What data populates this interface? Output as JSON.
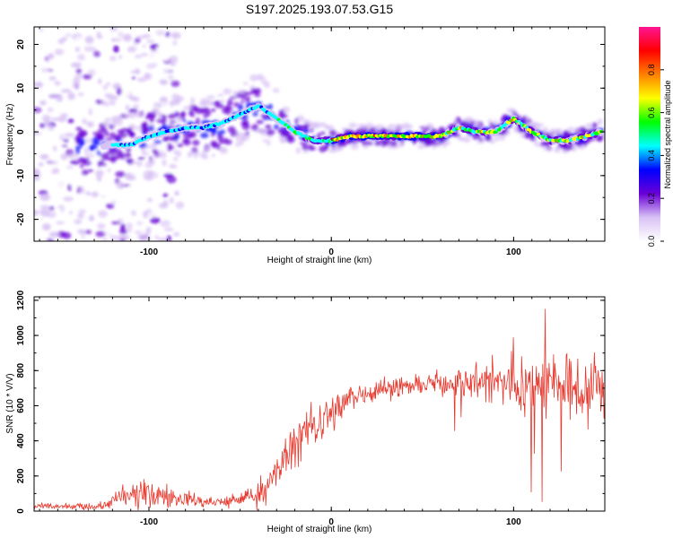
{
  "title": "S197.2025.193.07.53.G15",
  "chart_data": [
    {
      "type": "heatmap",
      "xlabel": "Height of straight line (km)",
      "ylabel": "Frequency (Hz)",
      "xlim": [
        -163,
        150
      ],
      "ylim": [
        -25,
        24
      ],
      "xticks": [
        -100,
        0,
        100
      ],
      "yticks": [
        -20,
        -10,
        0,
        10,
        20
      ],
      "colorbar": {
        "label": "Normalized spectral amplitude",
        "range": [
          0,
          1
        ],
        "ticks": [
          "0.0",
          "0.2",
          "0.4",
          "0.6",
          "0.8"
        ],
        "colors": [
          "#ffffff",
          "#d9c2f5",
          "#6a00d6",
          "#0000ff",
          "#00ffff",
          "#00ff00",
          "#ffff00",
          "#ff7f00",
          "#ff0000",
          "#ff1493"
        ]
      },
      "ridge": {
        "x": [
          -130,
          -120,
          -110,
          -100,
          -90,
          -80,
          -70,
          -60,
          -50,
          -40,
          -30,
          -20,
          -10,
          0,
          10,
          20,
          30,
          40,
          50,
          60,
          70,
          80,
          90,
          100,
          110,
          120,
          130,
          140,
          148
        ],
        "y": [
          -4,
          -3,
          -3,
          -1,
          0,
          1,
          1,
          2,
          4,
          6,
          3,
          0,
          -2,
          -2,
          -1,
          -1,
          -1,
          -1,
          -1,
          -1,
          1,
          0,
          0,
          3,
          0,
          -2,
          -2,
          -1,
          0
        ]
      }
    },
    {
      "type": "line",
      "xlabel": "Height of straight line (km)",
      "ylabel": "SNR (10 * V/V)",
      "xlim": [
        -163,
        150
      ],
      "ylim": [
        0,
        1220
      ],
      "xticks": [
        -100,
        0,
        100
      ],
      "yticks": [
        0,
        200,
        400,
        600,
        800,
        1000,
        1200
      ],
      "color": "#e8392e",
      "envelope": {
        "x": [
          -163,
          -140,
          -125,
          -120,
          -110,
          -100,
          -90,
          -80,
          -70,
          -60,
          -50,
          -45,
          -40,
          -35,
          -30,
          -25,
          -20,
          -15,
          -10,
          -5,
          0,
          5,
          10,
          20,
          30,
          40,
          50,
          60,
          70,
          80,
          90,
          100,
          110,
          120,
          130,
          140,
          150
        ],
        "y": [
          25,
          25,
          30,
          60,
          90,
          95,
          80,
          70,
          50,
          50,
          70,
          80,
          100,
          150,
          220,
          300,
          380,
          440,
          480,
          520,
          560,
          600,
          640,
          680,
          700,
          710,
          720,
          730,
          740,
          740,
          730,
          720,
          720,
          720,
          700,
          690,
          670
        ]
      },
      "spread": {
        "x": [
          -163,
          -125,
          -115,
          -100,
          -90,
          -80,
          -60,
          -45,
          -30,
          -20,
          -10,
          0,
          10,
          30,
          50,
          70,
          90,
          100,
          120,
          140,
          150
        ],
        "y": [
          15,
          20,
          60,
          75,
          60,
          45,
          35,
          50,
          110,
          130,
          120,
          100,
          80,
          60,
          50,
          80,
          130,
          160,
          180,
          180,
          180
        ]
      }
    }
  ]
}
